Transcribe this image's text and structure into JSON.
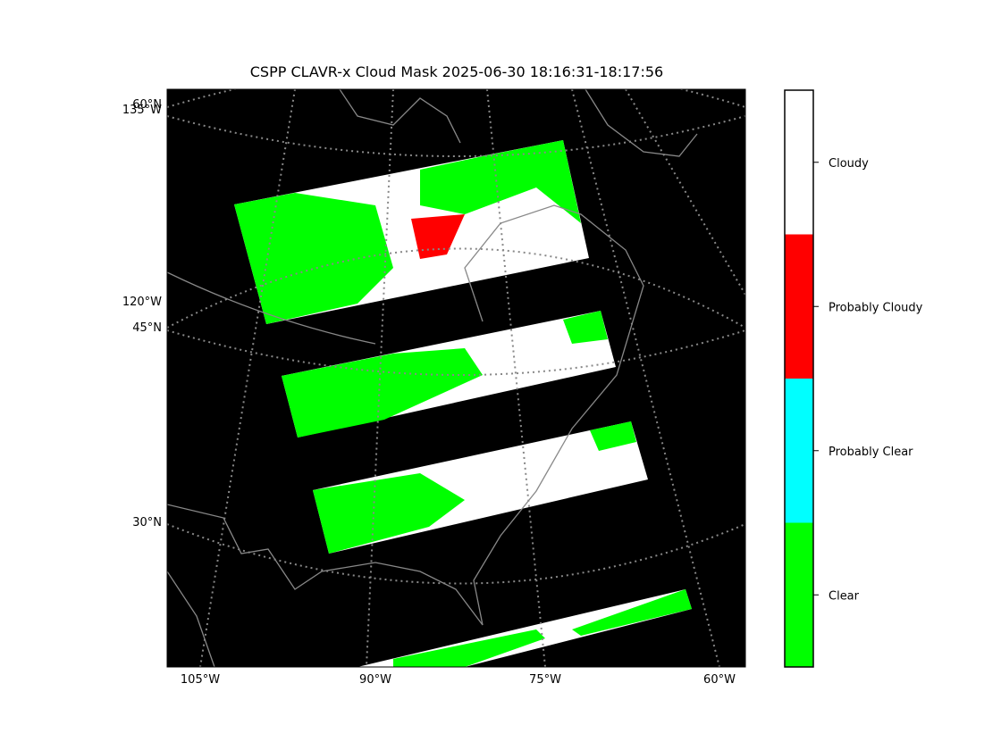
{
  "title": "CSPP CLAVR-x Cloud Mask 2025-06-30 18:16:31-18:17:56",
  "lon_labels": [
    "105°W",
    "90°W",
    "75°W",
    "60°W"
  ],
  "left_labels": [
    "60°N",
    "135°W",
    "120°W",
    "45°N",
    "30°N"
  ],
  "colorbar": {
    "items": [
      {
        "label": "Cloudy",
        "color": "#ffffff"
      },
      {
        "label": "Probably Cloudy",
        "color": "#ff0000"
      },
      {
        "label": "Probably Clear",
        "color": "#00ffff"
      },
      {
        "label": "Clear",
        "color": "#00ff00"
      }
    ]
  }
}
